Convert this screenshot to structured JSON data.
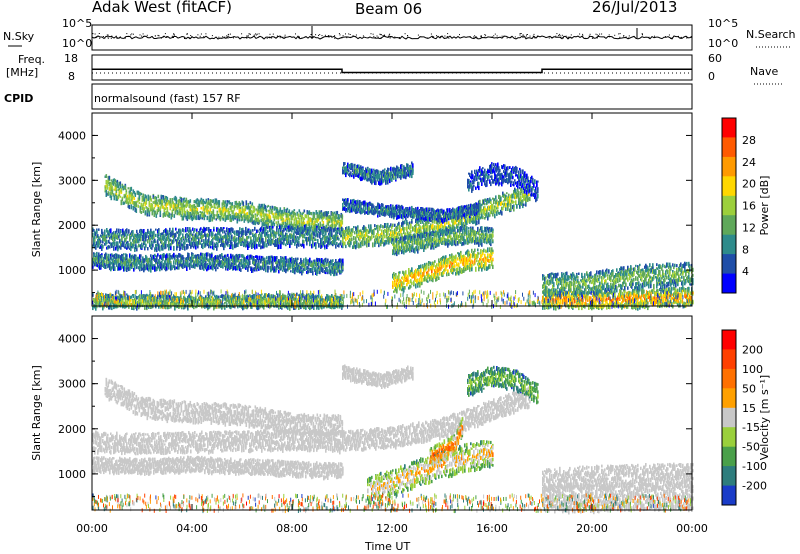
{
  "header": {
    "station": "Adak West (fitACF)",
    "beam": "Beam 06",
    "date": "26/Jul/2013"
  },
  "status_panels": {
    "nsky_label": "N.Sky",
    "nsearch_label": "N.Search",
    "power_scale_top": "10^5",
    "power_scale_bottom": "10^0",
    "freq_label": "Freq.",
    "freq_unit": "[MHz]",
    "freq_ticks": [
      "18",
      "8"
    ],
    "nave_label": "Nave",
    "nave_ticks": [
      "60",
      "0"
    ],
    "cpid_label": "CPID",
    "cpid_text": "normalsound (fast) 157 RF",
    "freq_segments": [
      {
        "from": 0,
        "to": 10,
        "mhz": 12.3
      },
      {
        "from": 10,
        "to": 18,
        "mhz": 10.5
      },
      {
        "from": 18,
        "to": 24,
        "mhz": 12.3
      }
    ]
  },
  "chart_data": [
    {
      "type": "heatmap",
      "name": "power",
      "ylabel": "Slant Range [km]",
      "yticks": [
        "1000",
        "2000",
        "3000",
        "4000"
      ],
      "ylim": [
        200,
        4500
      ],
      "xlim": [
        0,
        24
      ],
      "colorbar_label": "Power [dB]",
      "colorbar_ticks": [
        "4",
        "8",
        "12",
        "16",
        "20",
        "24",
        "28"
      ],
      "colorscale": [
        "#0000ff",
        "#1f4ea8",
        "#2e8b8b",
        "#5fa85a",
        "#9ccf3c",
        "#ffd700",
        "#ff9a00",
        "#ff5a00",
        "#ff0000"
      ],
      "bands": [
        {
          "pts": [
            [
              0.5,
              2950
            ],
            [
              2,
              2500
            ],
            [
              4,
              2400
            ],
            [
              6,
              2350
            ],
            [
              8,
              2150
            ],
            [
              10,
              2100
            ]
          ],
          "w": 220,
          "level": 0.55
        },
        {
          "pts": [
            [
              0,
              1750
            ],
            [
              2,
              1700
            ],
            [
              4,
              1750
            ],
            [
              6,
              1750
            ],
            [
              8,
              1800
            ],
            [
              10,
              1750
            ]
          ],
          "w": 220,
          "level": 0.3
        },
        {
          "pts": [
            [
              0,
              1250
            ],
            [
              2,
              1200
            ],
            [
              4,
              1250
            ],
            [
              6,
              1200
            ],
            [
              8,
              1150
            ],
            [
              10,
              1100
            ]
          ],
          "w": 160,
          "level": 0.3
        },
        {
          "pts": [
            [
              10,
              1750
            ],
            [
              12,
              1850
            ],
            [
              14,
              2050
            ],
            [
              16,
              2450
            ],
            [
              17.5,
              2750
            ]
          ],
          "w": 220,
          "level": 0.55
        },
        {
          "pts": [
            [
              10,
              3300
            ],
            [
              11.5,
              3100
            ],
            [
              12.8,
              3300
            ]
          ],
          "w": 140,
          "level": 0.25
        },
        {
          "pts": [
            [
              10,
              2500
            ],
            [
              12,
              2350
            ],
            [
              14,
              2250
            ],
            [
              15.5,
              2400
            ]
          ],
          "w": 120,
          "level": 0.25
        },
        {
          "pts": [
            [
              12,
              750
            ],
            [
              13,
              900
            ],
            [
              14,
              1100
            ],
            [
              15,
              1250
            ],
            [
              16,
              1300
            ]
          ],
          "w": 220,
          "level": 0.75
        },
        {
          "pts": [
            [
              12,
              1550
            ],
            [
              13,
              1650
            ],
            [
              14.5,
              1800
            ],
            [
              16,
              1800
            ]
          ],
          "w": 180,
          "level": 0.45
        },
        {
          "pts": [
            [
              15,
              3000
            ],
            [
              16,
              3200
            ],
            [
              17,
              3100
            ],
            [
              17.8,
              2800
            ]
          ],
          "w": 220,
          "level": 0.15
        },
        {
          "pts": [
            [
              18,
              400
            ],
            [
              20,
              380
            ],
            [
              22,
              400
            ],
            [
              24,
              450
            ]
          ],
          "w": 200,
          "level": 0.8
        },
        {
          "pts": [
            [
              18,
              700
            ],
            [
              20,
              750
            ],
            [
              22,
              900
            ],
            [
              24,
              950
            ]
          ],
          "w": 250,
          "level": 0.45
        },
        {
          "pts": [
            [
              0,
              350
            ],
            [
              4,
              300
            ],
            [
              8,
              350
            ],
            [
              10,
              320
            ]
          ],
          "w": 150,
          "level": 0.5
        }
      ]
    },
    {
      "type": "heatmap",
      "name": "velocity",
      "ylabel": "Slant Range [km]",
      "yticks": [
        "1000",
        "2000",
        "3000",
        "4000"
      ],
      "ylim": [
        200,
        4500
      ],
      "xlim": [
        0,
        24
      ],
      "colorbar_label": "Velocity [m s⁻¹]",
      "colorbar_ticks": [
        "200",
        "100",
        "50",
        "15",
        "-15",
        "-50",
        "-100",
        "-200"
      ],
      "colorscale": [
        "#1a3cc8",
        "#2e7d7d",
        "#4aa04a",
        "#9ad03c",
        "#c8c8c8",
        "#ffa000",
        "#ff7000",
        "#ff4000",
        "#ff0000"
      ],
      "bands": [
        {
          "pts": [
            [
              0.5,
              2950
            ],
            [
              2,
              2500
            ],
            [
              4,
              2400
            ],
            [
              6,
              2350
            ],
            [
              8,
              2150
            ],
            [
              10,
              2100
            ]
          ],
          "w": 220,
          "level": 0.5
        },
        {
          "pts": [
            [
              0,
              1750
            ],
            [
              2,
              1700
            ],
            [
              4,
              1750
            ],
            [
              6,
              1750
            ],
            [
              8,
              1800
            ],
            [
              10,
              1750
            ]
          ],
          "w": 220,
          "level": 0.5
        },
        {
          "pts": [
            [
              0,
              1250
            ],
            [
              2,
              1200
            ],
            [
              4,
              1250
            ],
            [
              6,
              1200
            ],
            [
              8,
              1150
            ],
            [
              10,
              1100
            ]
          ],
          "w": 160,
          "level": 0.5
        },
        {
          "pts": [
            [
              10,
              1750
            ],
            [
              12,
              1850
            ],
            [
              14,
              2050
            ],
            [
              16,
              2450
            ],
            [
              17.5,
              2750
            ]
          ],
          "w": 220,
          "level": 0.52
        },
        {
          "pts": [
            [
              10,
              3300
            ],
            [
              11.5,
              3100
            ],
            [
              12.8,
              3300
            ]
          ],
          "w": 140,
          "level": 0.5
        },
        {
          "pts": [
            [
              15,
              3000
            ],
            [
              16,
              3200
            ],
            [
              17,
              3100
            ],
            [
              17.8,
              2800
            ]
          ],
          "w": 220,
          "level": 0.35
        },
        {
          "pts": [
            [
              11,
              650
            ],
            [
              12,
              850
            ],
            [
              13,
              1050
            ],
            [
              14,
              1250
            ],
            [
              15,
              1400
            ],
            [
              16,
              1500
            ]
          ],
          "w": 300,
          "level": 0.62
        },
        {
          "pts": [
            [
              13.5,
              1400
            ],
            [
              14.5,
              1700
            ],
            [
              14.8,
              2100
            ]
          ],
          "w": 200,
          "level": 0.85
        },
        {
          "pts": [
            [
              18,
              500
            ],
            [
              20,
              500
            ],
            [
              22,
              550
            ],
            [
              24,
              550
            ]
          ],
          "w": 300,
          "level": 0.5
        },
        {
          "pts": [
            [
              18,
              900
            ],
            [
              20,
              950
            ],
            [
              22,
              1000
            ],
            [
              24,
              1000
            ]
          ],
          "w": 250,
          "level": 0.5
        }
      ]
    }
  ],
  "xaxis": {
    "title": "Time UT",
    "ticks": [
      "00:00",
      "04:00",
      "08:00",
      "12:00",
      "16:00",
      "20:00",
      "00:00"
    ]
  }
}
